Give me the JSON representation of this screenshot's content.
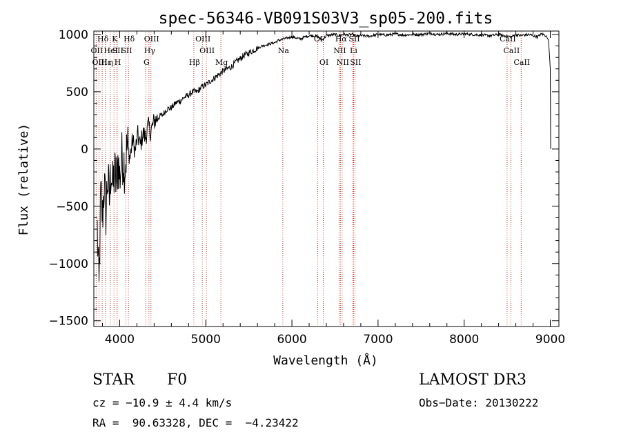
{
  "chart_data": {
    "type": "line",
    "title": "spec-56346-VB091S03V3_sp05-200.fits",
    "xlabel": "Wavelength (Å)",
    "ylabel": "Flux (relative)",
    "xlim": [
      3700,
      9100
    ],
    "ylim": [
      -1550,
      1030
    ],
    "x_ticks": [
      4000,
      5000,
      6000,
      7000,
      8000,
      9000
    ],
    "x_tick_labels": [
      "4000",
      "5000",
      "6000",
      "7000",
      "8000",
      "9000"
    ],
    "y_ticks": [
      -1500,
      -1000,
      -500,
      0,
      500,
      1000
    ],
    "y_tick_labels": [
      "−1500",
      "−1000",
      "−500",
      "0",
      "500",
      "1000"
    ],
    "grid": false,
    "series": [
      {
        "name": "flux",
        "color": "#000000",
        "x": [
          3740,
          3760,
          3780,
          3800,
          3820,
          3840,
          3860,
          3880,
          3900,
          3920,
          3940,
          3960,
          3980,
          4000,
          4030,
          4060,
          4090,
          4120,
          4150,
          4180,
          4210,
          4240,
          4270,
          4300,
          4330,
          4360,
          4400,
          4450,
          4500,
          4550,
          4600,
          4650,
          4700,
          4750,
          4800,
          4850,
          4900,
          4950,
          5000,
          5050,
          5100,
          5150,
          5200,
          5250,
          5300,
          5350,
          5400,
          5450,
          5500,
          5550,
          5600,
          5650,
          5700,
          5750,
          5800,
          5850,
          5900,
          5950,
          6000,
          6050,
          6100,
          6150,
          6200,
          6250,
          6300,
          6350,
          6400,
          6450,
          6500,
          6550,
          6600,
          6650,
          6700,
          6750,
          6800,
          6900,
          7000,
          7100,
          7200,
          7300,
          7400,
          7500,
          7600,
          7700,
          7800,
          7900,
          8000,
          8100,
          8200,
          8300,
          8400,
          8500,
          8550,
          8600,
          8650,
          8700,
          8750,
          8800,
          8850,
          8900,
          8950,
          8980,
          9000,
          9005
        ],
        "y": [
          -700,
          -1250,
          -400,
          -600,
          -300,
          -550,
          -250,
          -450,
          -150,
          -350,
          -200,
          -300,
          -100,
          -250,
          -50,
          -150,
          30,
          -80,
          80,
          -20,
          120,
          30,
          140,
          100,
          200,
          150,
          240,
          280,
          300,
          350,
          360,
          400,
          420,
          450,
          470,
          500,
          500,
          540,
          560,
          590,
          620,
          650,
          680,
          700,
          720,
          760,
          790,
          820,
          840,
          860,
          880,
          900,
          910,
          920,
          930,
          950,
          960,
          970,
          980,
          970,
          960,
          980,
          990,
          990,
          980,
          950,
          990,
          995,
          1000,
          990,
          1000,
          995,
          1000,
          985,
          990,
          985,
          1000,
          995,
          1005,
          995,
          1000,
          1000,
          1010,
          1000,
          1010,
          1000,
          1005,
          1000,
          995,
          990,
          1000,
          985,
          980,
          1000,
          990,
          995,
          1000,
          990,
          980,
          1005,
          990,
          950,
          700,
          0
        ]
      }
    ],
    "lines": [
      {
        "name": "Hδ",
        "x": 3797,
        "row": 1
      },
      {
        "name": "OII",
        "x": 3727,
        "row": 2
      },
      {
        "name": "OIII",
        "x": 3760,
        "row": 3
      },
      {
        "name": "Hε",
        "x": 3835,
        "row": 3
      },
      {
        "name": "HeI",
        "x": 3889,
        "row": 2
      },
      {
        "name": "η",
        "x": 3889,
        "row": 3
      },
      {
        "name": "K",
        "x": 3934,
        "row": 1
      },
      {
        "name": "SII",
        "x": 3970,
        "row": 2
      },
      {
        "name": "H",
        "x": 3969,
        "row": 3
      },
      {
        "name": "Hδ",
        "x": 4102,
        "row": 1
      },
      {
        "name": "SII",
        "x": 4072,
        "row": 2
      },
      {
        "name": "OIII",
        "x": 4363,
        "row": 1
      },
      {
        "name": "Hγ",
        "x": 4340,
        "row": 2
      },
      {
        "name": "G",
        "x": 4304,
        "row": 3
      },
      {
        "name": "Hβ",
        "x": 4861,
        "row": 3
      },
      {
        "name": "OIII",
        "x": 4959,
        "row": 1
      },
      {
        "name": "OIII",
        "x": 5007,
        "row": 2
      },
      {
        "name": "Mg",
        "x": 5175,
        "row": 3
      },
      {
        "name": "Na",
        "x": 5894,
        "row": 2
      },
      {
        "name": "OI",
        "x": 6300,
        "row": 1
      },
      {
        "name": "OI",
        "x": 6364,
        "row": 3
      },
      {
        "name": "Hα",
        "x": 6563,
        "row": 1
      },
      {
        "name": "NII",
        "x": 6548,
        "row": 2
      },
      {
        "name": "NII",
        "x": 6583,
        "row": 3
      },
      {
        "name": "SII",
        "x": 6716,
        "row": 1
      },
      {
        "name": "Li",
        "x": 6708,
        "row": 2
      },
      {
        "name": "SII",
        "x": 6731,
        "row": 3
      },
      {
        "name": "CaII",
        "x": 8498,
        "row": 1
      },
      {
        "name": "CaII",
        "x": 8542,
        "row": 2
      },
      {
        "name": "CaII",
        "x": 8662,
        "row": 3
      }
    ]
  },
  "info": {
    "object_class": "STAR",
    "subclass": "F0",
    "survey": "LAMOST DR3",
    "redshift_text": "cz = −10.9 ± 4.4 km/s",
    "obs_date_text": "Obs−Date: 20130222",
    "coords_text": "RA =  90.63328, DEC =  −4.23422"
  }
}
